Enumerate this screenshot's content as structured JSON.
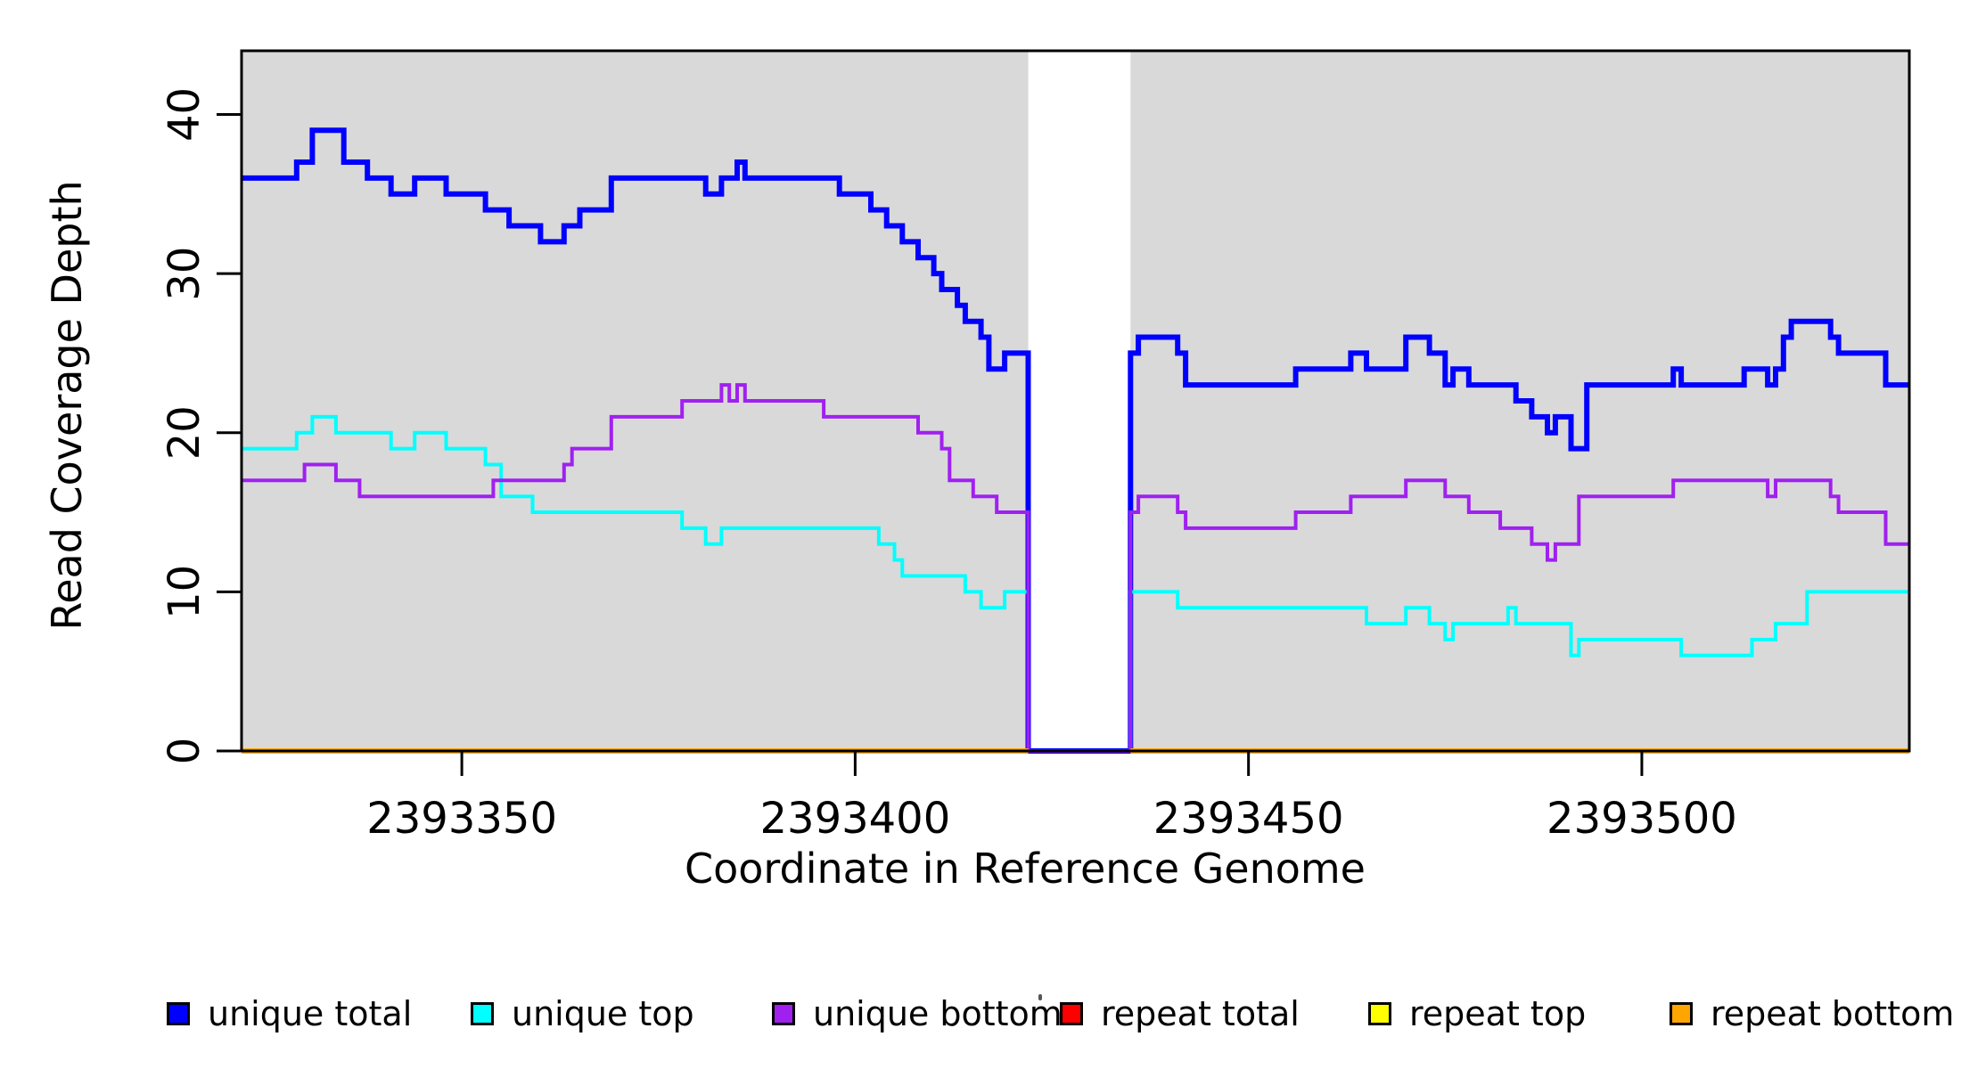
{
  "chart_data": {
    "type": "line",
    "step": true,
    "title": "",
    "xlabel": "Coordinate in Reference Genome",
    "ylabel": "Read Coverage Depth",
    "x_domain": [
      2393322,
      2393534
    ],
    "y_domain": [
      0,
      44
    ],
    "x_ticks": [
      "2393350",
      "2393400",
      "2393450",
      "2393500"
    ],
    "x_tick_values": [
      2393350,
      2393400,
      2393450,
      2393500
    ],
    "y_ticks": [
      "0",
      "10",
      "20",
      "30",
      "40"
    ],
    "y_tick_values": [
      0,
      10,
      20,
      30,
      40
    ],
    "grid": false,
    "panel_background": "#d9d9d9",
    "gap_background": "#ffffff",
    "coverage_regions": [
      [
        2393322,
        2393422
      ],
      [
        2393435,
        2393534
      ]
    ],
    "gap_region": [
      2393422,
      2393435
    ],
    "legend_position": "bottom",
    "series": [
      {
        "name": "unique total",
        "color": "#0000ff",
        "width": 6,
        "segments": [
          [
            [
              2393322,
              36
            ],
            [
              2393329,
              37
            ],
            [
              2393331,
              39
            ],
            [
              2393335,
              37
            ],
            [
              2393338,
              36
            ],
            [
              2393341,
              35
            ],
            [
              2393344,
              36
            ],
            [
              2393348,
              35
            ],
            [
              2393353,
              34
            ],
            [
              2393356,
              33
            ],
            [
              2393360,
              32
            ],
            [
              2393363,
              33
            ],
            [
              2393365,
              34
            ],
            [
              2393369,
              36
            ],
            [
              2393381,
              35
            ],
            [
              2393383,
              36
            ],
            [
              2393385,
              37
            ],
            [
              2393386,
              36
            ],
            [
              2393398,
              35
            ],
            [
              2393402,
              34
            ],
            [
              2393404,
              33
            ],
            [
              2393406,
              32
            ],
            [
              2393408,
              31
            ],
            [
              2393410,
              30
            ],
            [
              2393411,
              29
            ],
            [
              2393413,
              28
            ],
            [
              2393414,
              27
            ],
            [
              2393416,
              26
            ],
            [
              2393417,
              24
            ],
            [
              2393419,
              25
            ],
            [
              2393422,
              0
            ],
            [
              2393435,
              25
            ],
            [
              2393436,
              26
            ],
            [
              2393441,
              25
            ],
            [
              2393442,
              23
            ],
            [
              2393456,
              24
            ],
            [
              2393463,
              25
            ],
            [
              2393465,
              24
            ],
            [
              2393470,
              26
            ],
            [
              2393473,
              25
            ],
            [
              2393475,
              23
            ],
            [
              2393476,
              24
            ],
            [
              2393478,
              23
            ],
            [
              2393484,
              22
            ],
            [
              2393486,
              21
            ],
            [
              2393488,
              20
            ],
            [
              2393489,
              21
            ],
            [
              2393491,
              19
            ],
            [
              2393493,
              23
            ],
            [
              2393504,
              24
            ],
            [
              2393505,
              23
            ],
            [
              2393513,
              24
            ],
            [
              2393516,
              23
            ],
            [
              2393517,
              24
            ],
            [
              2393518,
              26
            ],
            [
              2393519,
              27
            ],
            [
              2393524,
              26
            ],
            [
              2393525,
              25
            ],
            [
              2393531,
              23
            ],
            [
              2393534,
              23
            ]
          ]
        ]
      },
      {
        "name": "unique top",
        "color": "#00ffff",
        "width": 4,
        "segments": [
          [
            [
              2393322,
              19
            ],
            [
              2393329,
              20
            ],
            [
              2393331,
              21
            ],
            [
              2393334,
              20
            ],
            [
              2393341,
              19
            ],
            [
              2393344,
              20
            ],
            [
              2393348,
              19
            ],
            [
              2393353,
              18
            ],
            [
              2393355,
              16
            ],
            [
              2393359,
              15
            ],
            [
              2393378,
              14
            ],
            [
              2393381,
              13
            ],
            [
              2393383,
              14
            ],
            [
              2393403,
              13
            ],
            [
              2393405,
              12
            ],
            [
              2393406,
              11
            ],
            [
              2393414,
              10
            ],
            [
              2393416,
              9
            ],
            [
              2393419,
              10
            ],
            [
              2393422,
              0
            ],
            [
              2393435,
              10
            ],
            [
              2393441,
              9
            ],
            [
              2393465,
              8
            ],
            [
              2393470,
              9
            ],
            [
              2393473,
              8
            ],
            [
              2393475,
              7
            ],
            [
              2393476,
              8
            ],
            [
              2393483,
              9
            ],
            [
              2393484,
              8
            ],
            [
              2393491,
              6
            ],
            [
              2393492,
              7
            ],
            [
              2393505,
              6
            ],
            [
              2393514,
              7
            ],
            [
              2393517,
              8
            ],
            [
              2393521,
              10
            ],
            [
              2393534,
              10
            ]
          ]
        ]
      },
      {
        "name": "unique bottom",
        "color": "#a020f0",
        "width": 4,
        "segments": [
          [
            [
              2393322,
              17
            ],
            [
              2393330,
              18
            ],
            [
              2393334,
              17
            ],
            [
              2393337,
              16
            ],
            [
              2393354,
              17
            ],
            [
              2393363,
              18
            ],
            [
              2393364,
              19
            ],
            [
              2393369,
              21
            ],
            [
              2393378,
              22
            ],
            [
              2393383,
              23
            ],
            [
              2393384,
              22
            ],
            [
              2393385,
              23
            ],
            [
              2393386,
              22
            ],
            [
              2393396,
              21
            ],
            [
              2393408,
              20
            ],
            [
              2393411,
              19
            ],
            [
              2393412,
              17
            ],
            [
              2393415,
              16
            ],
            [
              2393418,
              15
            ],
            [
              2393422,
              0
            ],
            [
              2393435,
              15
            ],
            [
              2393436,
              16
            ],
            [
              2393441,
              15
            ],
            [
              2393442,
              14
            ],
            [
              2393456,
              15
            ],
            [
              2393463,
              16
            ],
            [
              2393470,
              17
            ],
            [
              2393475,
              16
            ],
            [
              2393478,
              15
            ],
            [
              2393482,
              14
            ],
            [
              2393486,
              13
            ],
            [
              2393488,
              12
            ],
            [
              2393489,
              13
            ],
            [
              2393492,
              16
            ],
            [
              2393504,
              17
            ],
            [
              2393516,
              16
            ],
            [
              2393517,
              17
            ],
            [
              2393524,
              16
            ],
            [
              2393525,
              15
            ],
            [
              2393531,
              13
            ],
            [
              2393534,
              13
            ]
          ]
        ]
      },
      {
        "name": "repeat total",
        "color": "#ff0000",
        "width": 4,
        "segments": [
          [
            [
              2393322,
              0
            ],
            [
              2393422,
              0
            ]
          ],
          [
            [
              2393435,
              0
            ],
            [
              2393534,
              0
            ]
          ]
        ]
      },
      {
        "name": "repeat top",
        "color": "#ffff00",
        "width": 4,
        "segments": [
          [
            [
              2393322,
              0
            ],
            [
              2393422,
              0
            ]
          ],
          [
            [
              2393435,
              0
            ],
            [
              2393534,
              0
            ]
          ]
        ]
      },
      {
        "name": "repeat bottom",
        "color": "#ffa500",
        "width": 6,
        "segments": [
          [
            [
              2393322,
              0
            ],
            [
              2393422,
              0
            ]
          ],
          [
            [
              2393435,
              0
            ],
            [
              2393534,
              0
            ]
          ]
        ]
      }
    ],
    "legend": [
      {
        "label": "unique total",
        "color": "#0000ff"
      },
      {
        "label": "unique top",
        "color": "#00ffff"
      },
      {
        "label": "unique bottom",
        "color": "#a020f0"
      },
      {
        "label": "repeat total",
        "color": "#ff0000"
      },
      {
        "label": "repeat top",
        "color": "#ffff00"
      },
      {
        "label": "repeat bottom",
        "color": "#ffa500"
      }
    ]
  }
}
